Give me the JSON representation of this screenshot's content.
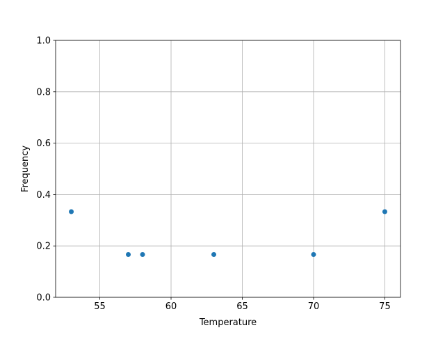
{
  "chart_data": {
    "type": "scatter",
    "title": "",
    "xlabel": "Temperature",
    "ylabel": "Frequency",
    "x": [
      53,
      57,
      58,
      63,
      70,
      75
    ],
    "y": [
      0.3333,
      0.1667,
      0.1667,
      0.1667,
      0.1667,
      0.3333
    ],
    "xlim": [
      51.9,
      76.1
    ],
    "ylim": [
      0.0,
      1.0
    ],
    "xticks": [
      55,
      60,
      65,
      70,
      75
    ],
    "xtick_labels": [
      "55",
      "60",
      "65",
      "70",
      "75"
    ],
    "yticks": [
      0.0,
      0.2,
      0.4,
      0.6,
      0.8,
      1.0
    ],
    "ytick_labels": [
      "0.0",
      "0.2",
      "0.4",
      "0.6",
      "0.8",
      "1.0"
    ],
    "grid": true,
    "marker_color": "#1f77b4",
    "grid_color": "#b0b0b0"
  }
}
